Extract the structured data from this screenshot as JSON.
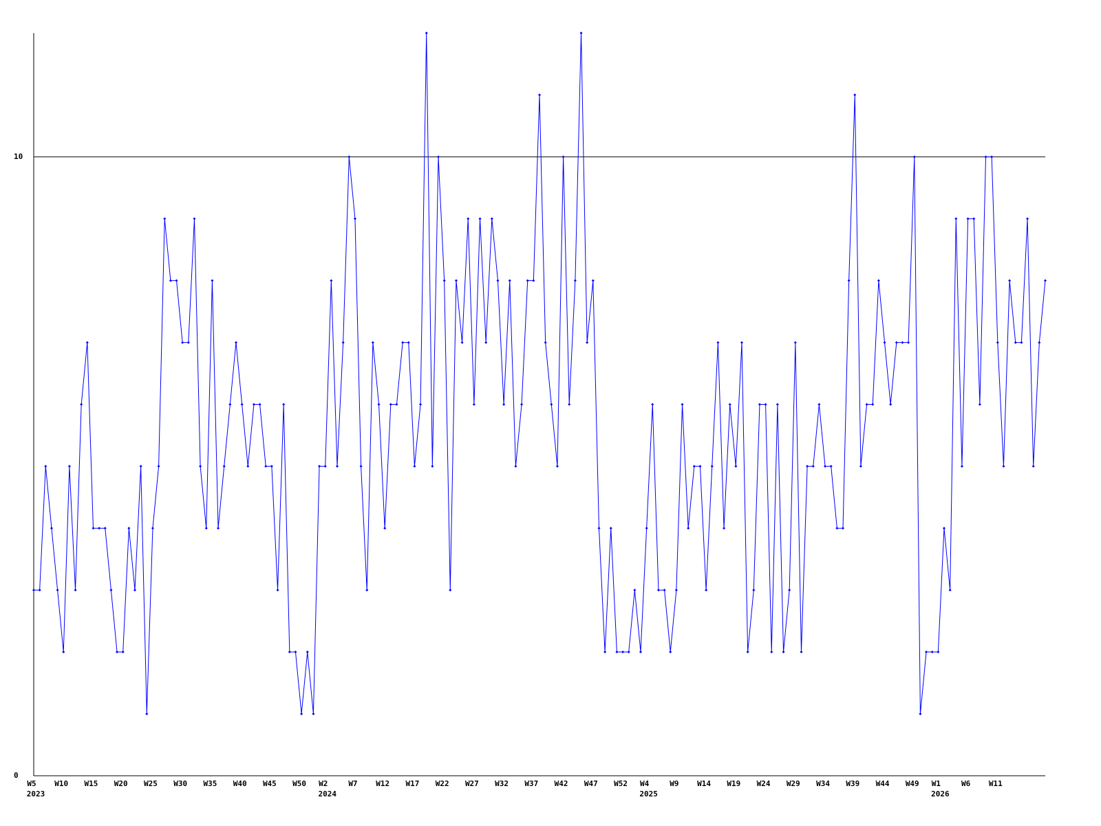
{
  "chart_data": {
    "type": "line",
    "categories": [
      "W5",
      null,
      null,
      null,
      null,
      "W10",
      null,
      null,
      null,
      null,
      "W15",
      null,
      null,
      null,
      null,
      "W20",
      null,
      null,
      null,
      null,
      "W25",
      null,
      null,
      null,
      null,
      "W30",
      null,
      null,
      null,
      null,
      "W35",
      null,
      null,
      null,
      null,
      "W40",
      null,
      null,
      null,
      null,
      "W45",
      null,
      null,
      null,
      null,
      "W50",
      null,
      null,
      null,
      "W2",
      null,
      null,
      null,
      null,
      "W7",
      null,
      null,
      null,
      null,
      "W12",
      null,
      null,
      null,
      null,
      "W17",
      null,
      null,
      null,
      null,
      "W22",
      null,
      null,
      null,
      null,
      "W27",
      null,
      null,
      null,
      null,
      "W32",
      null,
      null,
      null,
      null,
      "W37",
      null,
      null,
      null,
      null,
      "W42",
      null,
      null,
      null,
      null,
      "W47",
      null,
      null,
      null,
      null,
      "W52",
      null,
      null,
      null,
      "W4",
      null,
      null,
      null,
      null,
      "W9",
      null,
      null,
      null,
      null,
      "W14",
      null,
      null,
      null,
      null,
      "W19",
      null,
      null,
      null,
      null,
      "W24",
      null,
      null,
      null,
      null,
      "W29",
      null,
      null,
      null,
      null,
      "W34",
      null,
      null,
      null,
      null,
      "W39",
      null,
      null,
      null,
      null,
      "W44",
      null,
      null,
      null,
      null,
      "W49",
      null,
      null,
      null,
      "W1",
      null,
      null,
      null,
      null,
      "W6",
      null,
      null,
      null,
      null,
      "W11",
      null,
      null,
      null,
      null,
      null,
      null,
      null,
      null
    ],
    "x_year_labels": [
      "2023",
      null,
      null,
      null,
      null,
      null,
      null,
      null,
      null,
      null,
      null,
      null,
      null,
      null,
      null,
      null,
      null,
      null,
      null,
      null,
      null,
      null,
      null,
      null,
      null,
      null,
      null,
      null,
      null,
      null,
      null,
      null,
      null,
      null,
      null,
      null,
      null,
      null,
      null,
      null,
      null,
      null,
      null,
      null,
      null,
      null,
      null,
      null,
      null,
      "2024",
      null,
      null,
      null,
      null,
      null,
      null,
      null,
      null,
      null,
      null,
      null,
      null,
      null,
      null,
      null,
      null,
      null,
      null,
      null,
      null,
      null,
      null,
      null,
      null,
      null,
      null,
      null,
      null,
      null,
      null,
      null,
      null,
      null,
      null,
      null,
      null,
      null,
      null,
      null,
      null,
      null,
      null,
      null,
      null,
      null,
      null,
      null,
      null,
      null,
      null,
      null,
      null,
      null,
      "2025",
      null,
      null,
      null,
      null,
      null,
      null,
      null,
      null,
      null,
      null,
      null,
      null,
      null,
      null,
      null,
      null,
      null,
      null,
      null,
      null,
      null,
      null,
      null,
      null,
      null,
      null,
      null,
      null,
      null,
      null,
      null,
      null,
      null,
      null,
      null,
      null,
      null,
      null,
      null,
      null,
      null,
      null,
      null,
      null,
      null,
      null,
      null,
      null,
      "2026",
      null,
      null,
      null,
      null,
      null,
      null,
      null,
      null,
      null,
      null,
      null,
      null,
      null,
      null,
      null,
      null,
      null,
      null
    ],
    "series": [
      {
        "color": "#0000ff",
        "values": [
          3,
          3,
          5,
          4,
          3,
          2,
          5,
          3,
          6,
          7,
          4,
          4,
          4,
          3,
          2,
          2,
          4,
          3,
          5,
          1,
          4,
          5,
          9,
          8,
          8,
          7,
          7,
          9,
          5,
          4,
          8,
          4,
          5,
          6,
          7,
          6,
          5,
          6,
          6,
          5,
          5,
          3,
          6,
          2,
          2,
          1,
          2,
          1,
          5,
          5,
          8,
          5,
          7,
          10,
          9,
          5,
          3,
          7,
          6,
          4,
          6,
          6,
          7,
          7,
          5,
          6,
          12,
          5,
          10,
          8,
          3,
          8,
          7,
          9,
          6,
          9,
          7,
          9,
          8,
          6,
          8,
          5,
          6,
          8,
          8,
          11,
          7,
          6,
          5,
          10,
          6,
          8,
          12,
          7,
          8,
          4,
          2,
          4,
          2,
          2,
          2,
          3,
          2,
          4,
          6,
          3,
          3,
          2,
          3,
          6,
          4,
          5,
          5,
          3,
          5,
          7,
          4,
          6,
          5,
          7,
          2,
          3,
          6,
          6,
          2,
          6,
          2,
          3,
          7,
          2,
          5,
          5,
          6,
          5,
          5,
          4,
          4,
          8,
          11,
          5,
          6,
          6,
          8,
          7,
          6,
          7,
          7,
          7,
          10,
          1,
          2,
          2,
          2,
          4,
          3,
          9,
          5,
          9,
          9,
          6,
          10,
          10,
          7,
          5,
          8,
          7,
          7,
          9,
          5,
          7,
          8
        ]
      }
    ],
    "ylim": [
      0,
      12
    ],
    "yticks": [
      0,
      10
    ],
    "grid": true
  }
}
